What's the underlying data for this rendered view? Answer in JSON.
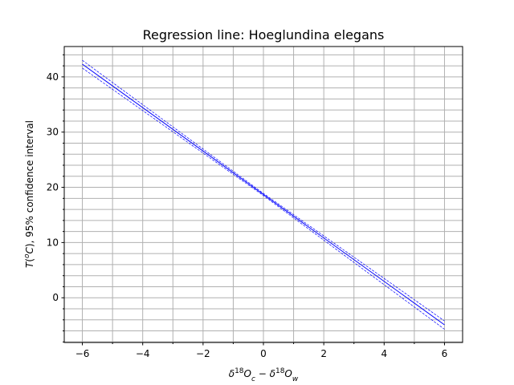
{
  "chart_data": {
    "type": "line",
    "title": "Regression line: Hoeglundina elegans",
    "xlabel": "δ¹⁸O_c − δ¹⁸O_w",
    "ylabel": "T(°C), 95% confidence interval",
    "xlim": [
      -6.6,
      6.6
    ],
    "ylim": [
      -8.1,
      45.5
    ],
    "x_ticks": [
      -6,
      -4,
      -2,
      0,
      2,
      4,
      6
    ],
    "x_tick_labels": [
      "−6",
      "−4",
      "−2",
      "0",
      "2",
      "4",
      "6"
    ],
    "y_ticks": [
      0,
      10,
      20,
      30,
      40
    ],
    "y_tick_labels": [
      "0",
      "10",
      "20",
      "30",
      "40"
    ],
    "x_minor_step": 1,
    "y_minor_step": 2,
    "grid": "major and minor",
    "series": [
      {
        "role": "fit",
        "style": "solid",
        "color": "#0000ff",
        "x": [
          -6,
          6
        ],
        "y": [
          42.3,
          -4.9
        ]
      },
      {
        "role": "upper",
        "style": "dashed",
        "color": "#0000ff",
        "x": [
          -6,
          0,
          6
        ],
        "y": [
          43.0,
          18.9,
          -4.2
        ]
      },
      {
        "role": "lower",
        "style": "dashed",
        "color": "#0000ff",
        "x": [
          -6,
          0,
          6
        ],
        "y": [
          41.6,
          18.5,
          -5.7
        ]
      }
    ]
  }
}
